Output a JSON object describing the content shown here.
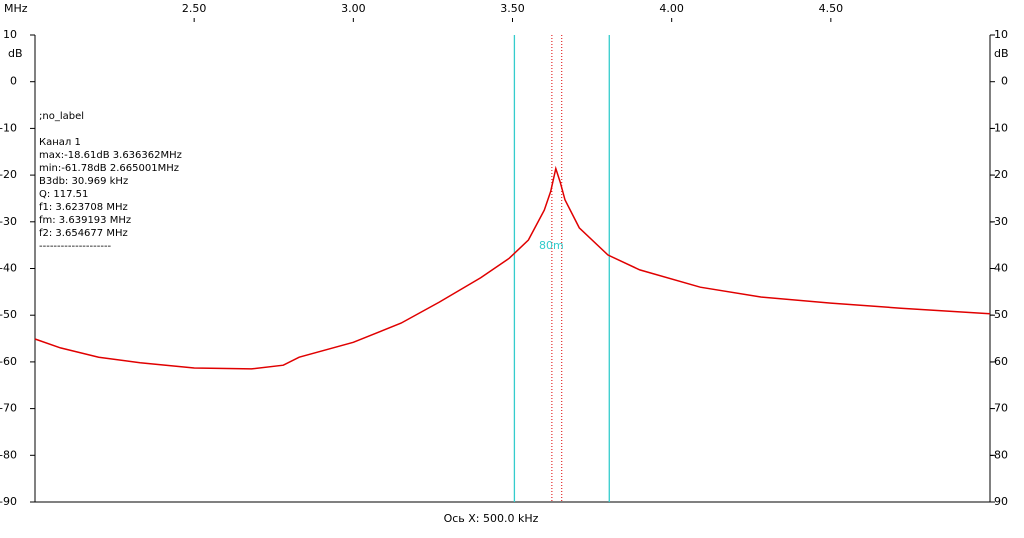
{
  "chart_data": {
    "type": "line",
    "x_unit": "MHz",
    "y_unit": "dB",
    "x_axis_label": "Ось X: 500.0 kHz",
    "xlim": [
      2.0,
      5.0
    ],
    "xticks": [
      {
        "value": 2.5,
        "label": "2.50"
      },
      {
        "value": 3.0,
        "label": "3.00"
      },
      {
        "value": 3.5,
        "label": "3.50"
      },
      {
        "value": 4.0,
        "label": "4.00"
      },
      {
        "value": 4.5,
        "label": "4.50"
      }
    ],
    "ylim": [
      -90,
      10
    ],
    "yticks": [
      10,
      0,
      -10,
      -20,
      -30,
      -40,
      -50,
      -60,
      -70,
      -80,
      -90
    ],
    "grid": false,
    "info": [
      ";no_label",
      "Канал 1",
      "max:-18.61dB 3.636362MHz",
      "min:-61.78dB 2.665001MHz",
      "B3db: 30.969 kHz",
      "Q: 117.51",
      "f1: 3.623708 MHz",
      "fm: 3.639193 MHz",
      "f2: 3.654677 MHz",
      "--------------------"
    ],
    "cursor_lines": {
      "color": "#33cccc",
      "x": [
        3.506,
        3.804
      ]
    },
    "bandwidth_lines": {
      "color": "#dd0000",
      "x": [
        3.623708,
        3.654677
      ]
    },
    "annotation": "80m",
    "series": [
      {
        "name": "Канал 1",
        "color": "#e00000",
        "x": [
          2.0,
          2.08,
          2.2,
          2.33,
          2.5,
          2.68,
          2.78,
          2.83,
          3.0,
          3.15,
          3.27,
          3.4,
          3.49,
          3.55,
          3.6,
          3.62,
          3.636,
          3.65,
          3.665,
          3.71,
          3.8,
          3.9,
          4.09,
          4.28,
          4.5,
          4.72,
          5.0
        ],
        "values": [
          -55.1,
          -57,
          -59,
          -60.2,
          -61.3,
          -61.5,
          -60.7,
          -59,
          -55.8,
          -51.7,
          -47.2,
          -42,
          -37.8,
          -33.9,
          -27.5,
          -23.5,
          -18.6,
          -21.5,
          -25.3,
          -31.3,
          -37.1,
          -40.3,
          -44,
          -46.1,
          -47.4,
          -48.5,
          -49.7
        ]
      }
    ]
  }
}
